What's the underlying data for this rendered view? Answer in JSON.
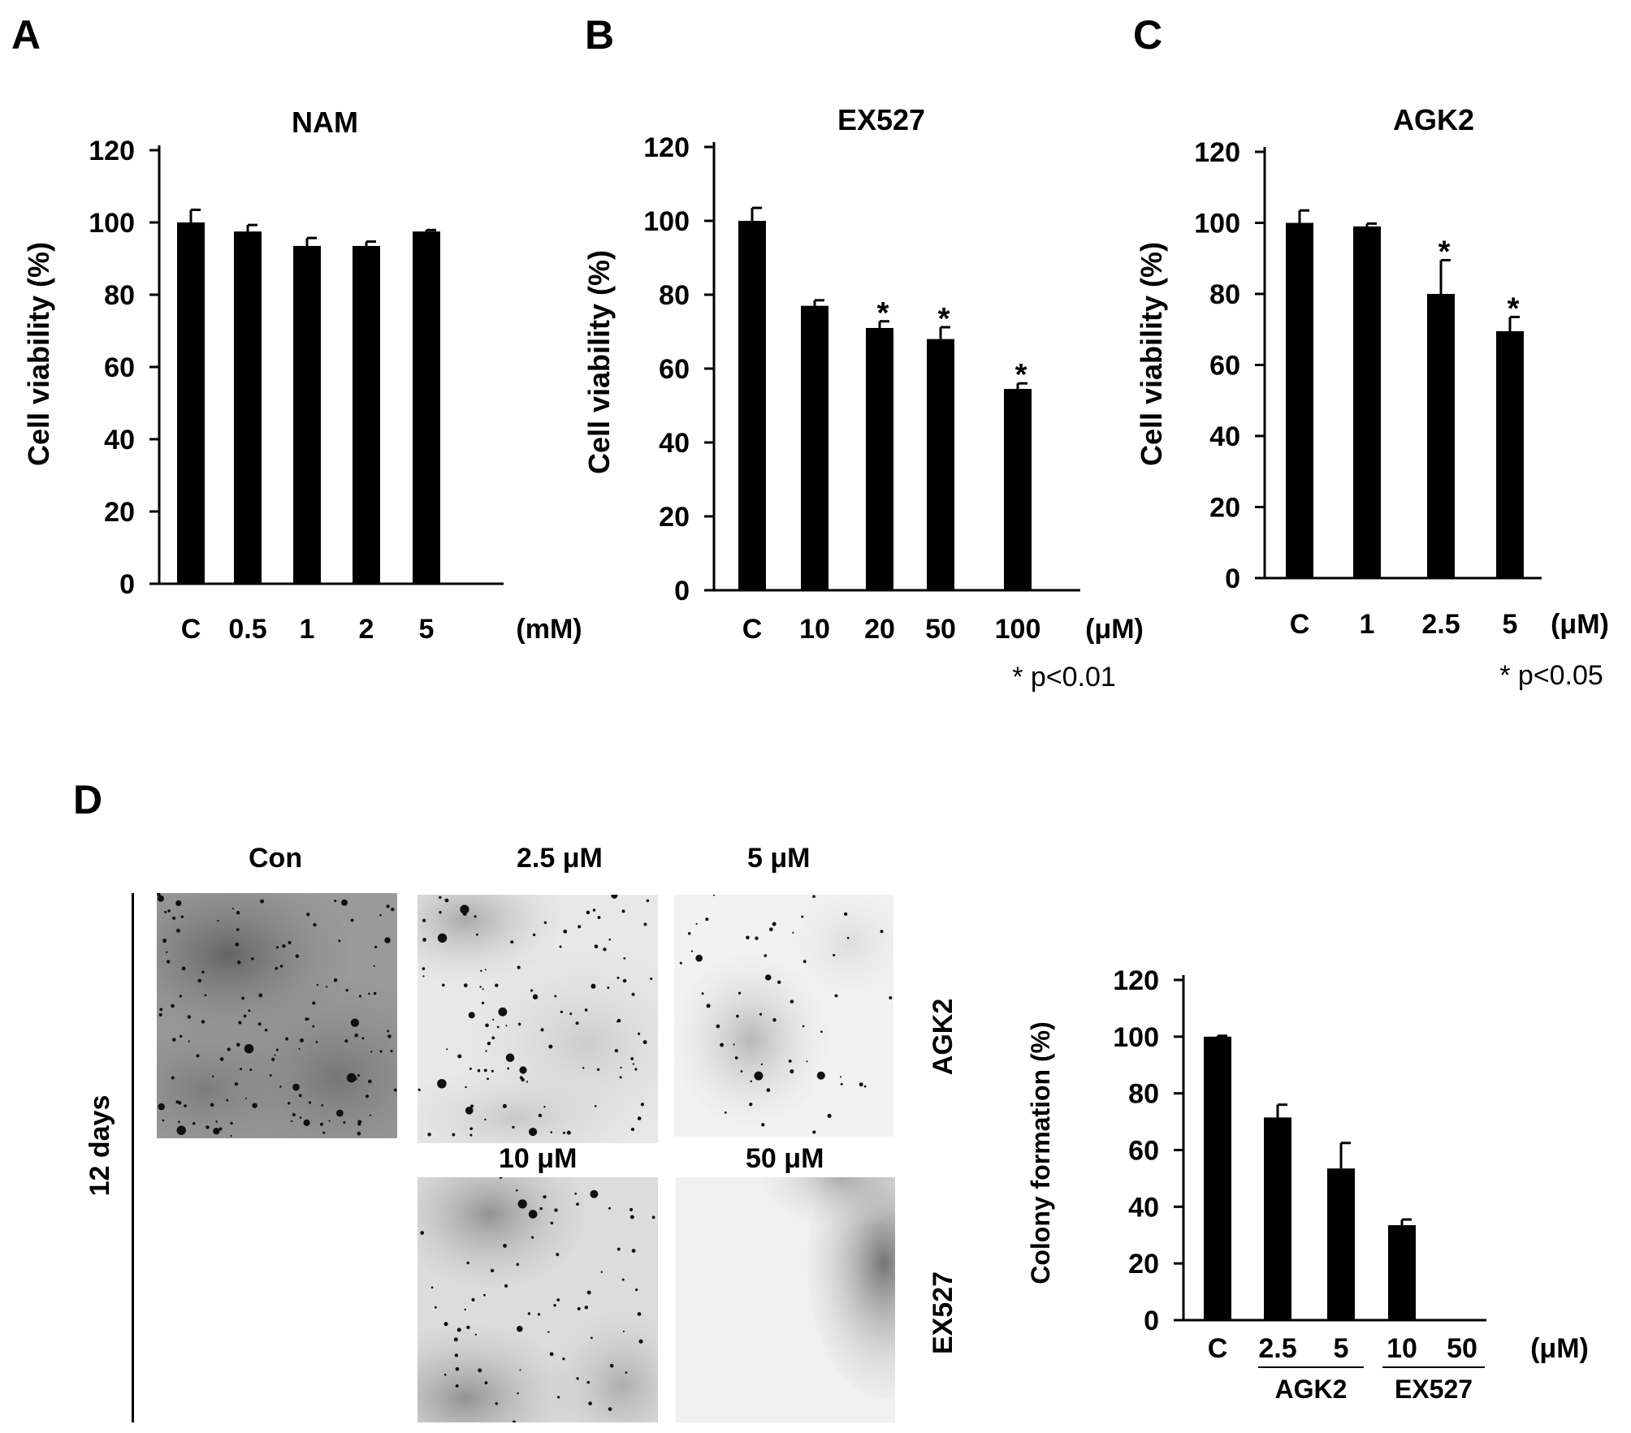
{
  "panels": {
    "A": "A",
    "B": "B",
    "C": "C",
    "D": "D"
  },
  "chart_data": [
    {
      "id": "A",
      "type": "bar",
      "title": "NAM",
      "ylabel": "Cell viability (%)",
      "unit": "(mM)",
      "categories": [
        "C",
        "0.5",
        "1",
        "2",
        "5"
      ],
      "values": [
        100,
        97.5,
        93.5,
        93.5,
        97.5
      ],
      "errors": [
        3.5,
        1.8,
        2.2,
        1.2,
        0.4
      ],
      "significant": [
        false,
        false,
        false,
        false,
        false
      ],
      "ylim": [
        0,
        120
      ],
      "yticks": [
        0,
        20,
        40,
        60,
        80,
        100,
        120
      ],
      "note": ""
    },
    {
      "id": "B",
      "type": "bar",
      "title": "EX527",
      "ylabel": "Cell viability (%)",
      "unit": "(μM)",
      "categories": [
        "C",
        "10",
        "20",
        "50",
        "100"
      ],
      "values": [
        100,
        77,
        71,
        68,
        54.5
      ],
      "errors": [
        3.5,
        1.5,
        1.8,
        3.2,
        1.5
      ],
      "significant": [
        false,
        false,
        true,
        true,
        true
      ],
      "ylim": [
        0,
        120
      ],
      "yticks": [
        0,
        20,
        40,
        60,
        80,
        100,
        120
      ],
      "note": "* p<0.01"
    },
    {
      "id": "C",
      "type": "bar",
      "title": "AGK2",
      "ylabel": "Cell viability (%)",
      "unit": "(μM)",
      "categories": [
        "C",
        "1",
        "2.5",
        "5"
      ],
      "values": [
        100,
        99,
        80,
        69.5
      ],
      "errors": [
        3.5,
        0.8,
        9.5,
        4
      ],
      "significant": [
        false,
        false,
        true,
        true
      ],
      "ylim": [
        0,
        120
      ],
      "yticks": [
        0,
        20,
        40,
        60,
        80,
        100,
        120
      ],
      "note": "* p<0.05"
    },
    {
      "id": "D",
      "type": "bar",
      "title": "",
      "ylabel": "Colony formation (%)",
      "unit": "(μM)",
      "categories": [
        "C",
        "2.5",
        "5",
        "10",
        "50"
      ],
      "values": [
        100,
        71.5,
        53.5,
        33.5,
        0
      ],
      "errors": [
        0.3,
        4.5,
        9,
        2,
        0
      ],
      "significant": [
        false,
        false,
        false,
        false,
        false
      ],
      "groups": [
        {
          "label": "AGK2",
          "from": 1,
          "to": 2
        },
        {
          "label": "EX527",
          "from": 3,
          "to": 4
        }
      ],
      "ylim": [
        0,
        120
      ],
      "yticks": [
        0,
        20,
        40,
        60,
        80,
        100,
        120
      ],
      "note": ""
    }
  ],
  "micrographs": {
    "time_label": "12 days",
    "con_label": "Con",
    "col1_label": "2.5 μM",
    "col2_label": "5 μM",
    "col3_label": "10 μM",
    "col4_label": "50 μM",
    "row1_drug": "AGK2",
    "row2_drug": "EX527"
  }
}
